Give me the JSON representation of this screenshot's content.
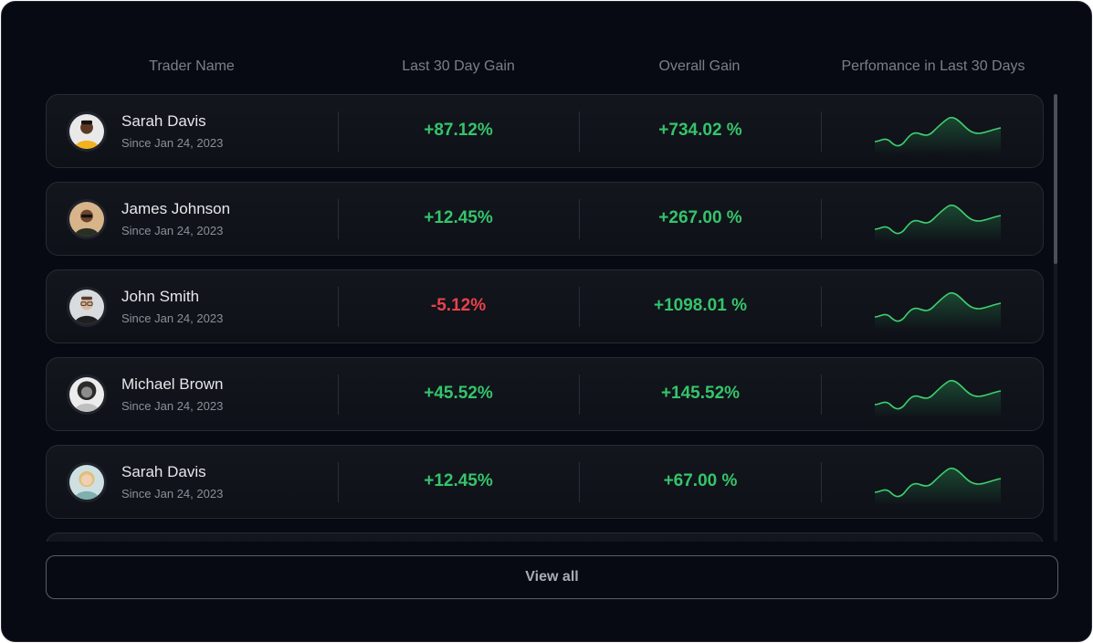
{
  "header": {
    "trader_name": "Trader Name",
    "last_30_day_gain": "Last 30 Day Gain",
    "overall_gain": "Overall Gain",
    "performance": "Perfomance in Last 30 Days"
  },
  "traders": [
    {
      "name": "Sarah Davis",
      "since": "Since Jan 24, 2023",
      "gain_30": "+87.12%",
      "gain_30_trend": "positive",
      "overall": "+734.02 %",
      "avatar": "avatar-man-yellow-shirt"
    },
    {
      "name": "James Johnson",
      "since": "Since Jan 24, 2023",
      "gain_30": "+12.45%",
      "gain_30_trend": "positive",
      "overall": "+267.00 %",
      "avatar": "avatar-man-sunglasses"
    },
    {
      "name": "John Smith",
      "since": "Since Jan 24, 2023",
      "gain_30": "-5.12%",
      "gain_30_trend": "negative",
      "overall": "+1098.01 %",
      "avatar": "avatar-man-glasses"
    },
    {
      "name": "Michael Brown",
      "since": "Since Jan 24, 2023",
      "gain_30": "+45.52%",
      "gain_30_trend": "positive",
      "overall": "+145.52%",
      "avatar": "avatar-woman-curly-hair"
    },
    {
      "name": "Sarah Davis",
      "since": "Since Jan 24, 2023",
      "gain_30": "+12.45%",
      "gain_30_trend": "positive",
      "overall": "+67.00 %",
      "avatar": "avatar-woman-blonde"
    }
  ],
  "view_all_label": "View all",
  "colors": {
    "positive": "#35c46b",
    "negative": "#e8424d",
    "background": "#080a13",
    "sparkline": "#3fcf6f"
  }
}
